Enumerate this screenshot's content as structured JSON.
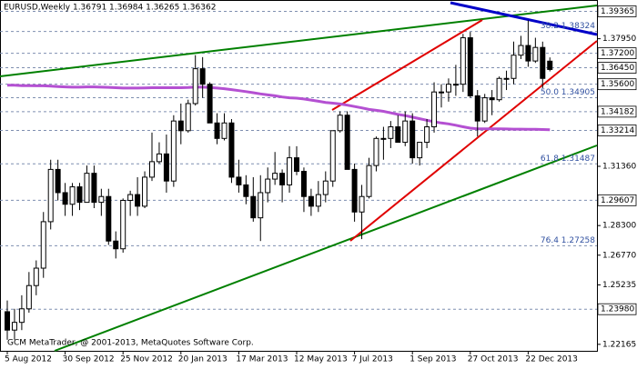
{
  "chart_data": {
    "type": "candlestick",
    "title": "EURUSD,Weekly  1.36791 1.36984 1.36265 1.36362",
    "footer": "GCM MetaTrader, @ 2001-2013, MetaQuotes Software Corp.",
    "categories": [
      "5 Aug 2012",
      null,
      null,
      null,
      null,
      null,
      null,
      null,
      "30 Sep 2012",
      null,
      null,
      null,
      null,
      null,
      null,
      null,
      "25 Nov 2012",
      null,
      null,
      null,
      null,
      null,
      null,
      null,
      "20 Jan 2013",
      null,
      null,
      null,
      null,
      null,
      null,
      null,
      "17 Mar 2013",
      null,
      null,
      null,
      null,
      null,
      null,
      null,
      "12 May 2013",
      null,
      null,
      null,
      null,
      null,
      null,
      null,
      "7 Jul 2013",
      null,
      null,
      null,
      null,
      null,
      null,
      null,
      "1 Sep 2013",
      null,
      null,
      null,
      null,
      null,
      null,
      null,
      "27 Oct 2013",
      null,
      null,
      null,
      null,
      null,
      null,
      null,
      "22 Dec 2013",
      null,
      null,
      null
    ],
    "open": [
      1.2385,
      1.229,
      1.233,
      1.24,
      1.252,
      1.261,
      1.285,
      1.312,
      1.3,
      1.294,
      1.303,
      1.295,
      1.31,
      1.295,
      1.298,
      1.275,
      1.271,
      1.296,
      1.299,
      1.293,
      1.308,
      1.316,
      1.32,
      1.306,
      1.337,
      1.332,
      1.346,
      1.364,
      1.356,
      1.336,
      1.328,
      1.336,
      1.308,
      1.304,
      1.298,
      1.287,
      1.3,
      1.307,
      1.31,
      1.304,
      1.318,
      1.311,
      1.298,
      1.293,
      1.299,
      1.306,
      1.332,
      1.34,
      1.312,
      1.29,
      1.298,
      1.314,
      1.328,
      1.328,
      1.334,
      1.326,
      1.337,
      1.318,
      1.326,
      1.334,
      1.352,
      1.352,
      1.356,
      1.356,
      1.38,
      1.35,
      1.337,
      1.349,
      1.348,
      1.359,
      1.359,
      1.371,
      1.376,
      1.368,
      1.375,
      1.36791
    ],
    "high": [
      1.2443,
      1.24,
      1.247,
      1.259,
      1.265,
      1.29,
      1.317,
      1.317,
      1.305,
      1.305,
      1.305,
      1.314,
      1.314,
      1.302,
      1.302,
      1.28,
      1.297,
      1.301,
      1.308,
      1.311,
      1.331,
      1.326,
      1.33,
      1.34,
      1.346,
      1.348,
      1.371,
      1.37,
      1.357,
      1.341,
      1.341,
      1.338,
      1.317,
      1.309,
      1.308,
      1.309,
      1.313,
      1.321,
      1.312,
      1.324,
      1.324,
      1.313,
      1.302,
      1.306,
      1.311,
      1.332,
      1.342,
      1.342,
      1.315,
      1.304,
      1.318,
      1.329,
      1.334,
      1.337,
      1.34,
      1.342,
      1.341,
      1.326,
      1.338,
      1.357,
      1.356,
      1.359,
      1.366,
      1.382,
      1.383,
      1.353,
      1.351,
      1.353,
      1.36,
      1.363,
      1.378,
      1.381,
      1.389,
      1.38,
      1.378,
      1.36984
    ],
    "low": [
      1.224,
      1.224,
      1.229,
      1.238,
      1.247,
      1.256,
      1.281,
      1.296,
      1.288,
      1.288,
      1.291,
      1.295,
      1.292,
      1.288,
      1.273,
      1.266,
      1.269,
      1.288,
      1.288,
      1.292,
      1.306,
      1.315,
      1.3,
      1.303,
      1.325,
      1.331,
      1.345,
      1.349,
      1.337,
      1.325,
      1.327,
      1.305,
      1.3,
      1.294,
      1.285,
      1.275,
      1.295,
      1.304,
      1.295,
      1.3,
      1.309,
      1.29,
      1.288,
      1.29,
      1.295,
      1.303,
      1.331,
      1.312,
      1.285,
      1.276,
      1.297,
      1.311,
      1.317,
      1.323,
      1.326,
      1.324,
      1.315,
      1.314,
      1.323,
      1.331,
      1.344,
      1.347,
      1.35,
      1.352,
      1.349,
      1.329,
      1.336,
      1.34,
      1.347,
      1.353,
      1.356,
      1.369,
      1.365,
      1.367,
      1.354,
      1.36265
    ],
    "close": [
      1.229,
      1.233,
      1.24,
      1.252,
      1.261,
      1.285,
      1.312,
      1.3,
      1.294,
      1.303,
      1.295,
      1.31,
      1.295,
      1.298,
      1.275,
      1.271,
      1.296,
      1.299,
      1.293,
      1.308,
      1.316,
      1.32,
      1.306,
      1.337,
      1.332,
      1.346,
      1.364,
      1.356,
      1.336,
      1.328,
      1.336,
      1.308,
      1.304,
      1.298,
      1.287,
      1.3,
      1.307,
      1.31,
      1.304,
      1.318,
      1.311,
      1.298,
      1.293,
      1.299,
      1.306,
      1.332,
      1.34,
      1.312,
      1.29,
      1.298,
      1.314,
      1.328,
      1.328,
      1.334,
      1.326,
      1.337,
      1.318,
      1.326,
      1.334,
      1.352,
      1.352,
      1.356,
      1.356,
      1.38,
      1.35,
      1.337,
      1.349,
      1.348,
      1.359,
      1.359,
      1.371,
      1.376,
      1.368,
      1.375,
      1.359,
      1.36362
    ],
    "ma": {
      "color": "#b450d2",
      "values": [
        1.3555,
        1.3555,
        1.3553,
        1.3553,
        1.3552,
        1.3552,
        1.355,
        1.3548,
        1.3546,
        1.3545,
        1.3545,
        1.3546,
        1.3546,
        1.3545,
        1.3544,
        1.3542,
        1.354,
        1.354,
        1.354,
        1.3541,
        1.3542,
        1.3542,
        1.3542,
        1.3542,
        1.3542,
        1.3543,
        1.3545,
        1.3545,
        1.3543,
        1.354,
        1.3537,
        1.3532,
        1.3527,
        1.3522,
        1.3516,
        1.351,
        1.3505,
        1.35,
        1.3494,
        1.349,
        1.3488,
        1.3484,
        1.3478,
        1.3472,
        1.3466,
        1.3462,
        1.3458,
        1.3452,
        1.3445,
        1.3438,
        1.343,
        1.3425,
        1.342,
        1.3412,
        1.3404,
        1.3398,
        1.339,
        1.3382,
        1.3374,
        1.3366,
        1.336,
        1.3355,
        1.3348,
        1.334,
        1.3333,
        1.333,
        1.333,
        1.333,
        1.333,
        1.3329,
        1.3328,
        1.3328,
        1.3327,
        1.3327,
        1.3326,
        1.3325
      ]
    },
    "ylim": [
      1.2183,
      1.3995
    ],
    "yticks": [
      {
        "value": 1.3795,
        "label": "1.37950"
      },
      {
        "value": 1.3136,
        "label": "1.31360"
      },
      {
        "value": 1.283,
        "label": "1.28300"
      },
      {
        "value": 1.2677,
        "label": "1.26770"
      },
      {
        "value": 1.25235,
        "label": "1.25235"
      },
      {
        "value": 1.22165,
        "label": "1.22165"
      }
    ],
    "price_levels": [
      {
        "value": 1.39365,
        "label": "1.39365"
      },
      {
        "value": 1.372,
        "label": "1.37200"
      },
      {
        "value": 1.3645,
        "label": "1.36450"
      },
      {
        "value": 1.356,
        "label": "1.35600"
      },
      {
        "value": 1.34182,
        "label": "1.34182"
      },
      {
        "value": 1.33214,
        "label": "1.33214"
      },
      {
        "value": 1.29607,
        "label": "1.29607"
      },
      {
        "value": 1.2398,
        "label": "1.23980"
      }
    ],
    "fib_levels": [
      {
        "value": 1.38324,
        "label": "38.2  1.38324"
      },
      {
        "value": 1.34905,
        "label": "50.0  1.34905"
      },
      {
        "value": 1.31487,
        "label": "61.8  1.31487"
      },
      {
        "value": 1.27258,
        "label": "76.4  1.27258"
      }
    ]
  }
}
